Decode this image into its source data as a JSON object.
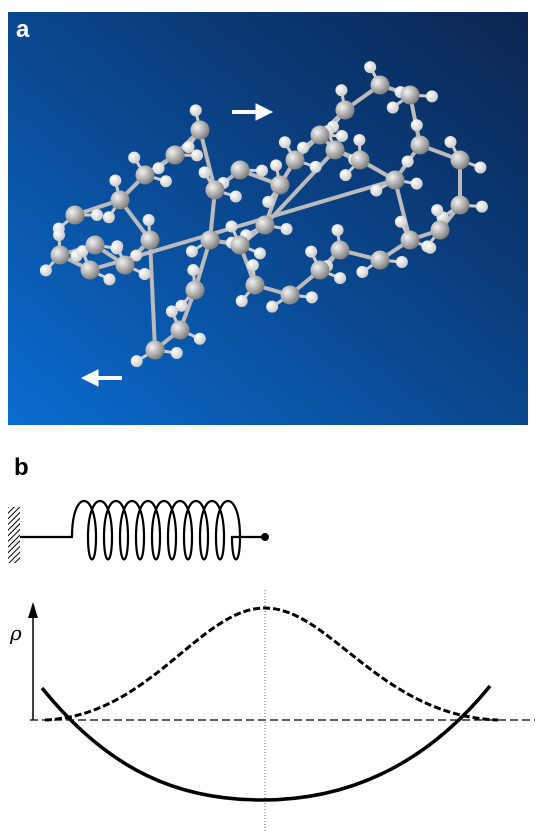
{
  "panels": [
    {
      "label": "a"
    },
    {
      "label": "b",
      "y_axis_label": "ρ"
    }
  ]
}
